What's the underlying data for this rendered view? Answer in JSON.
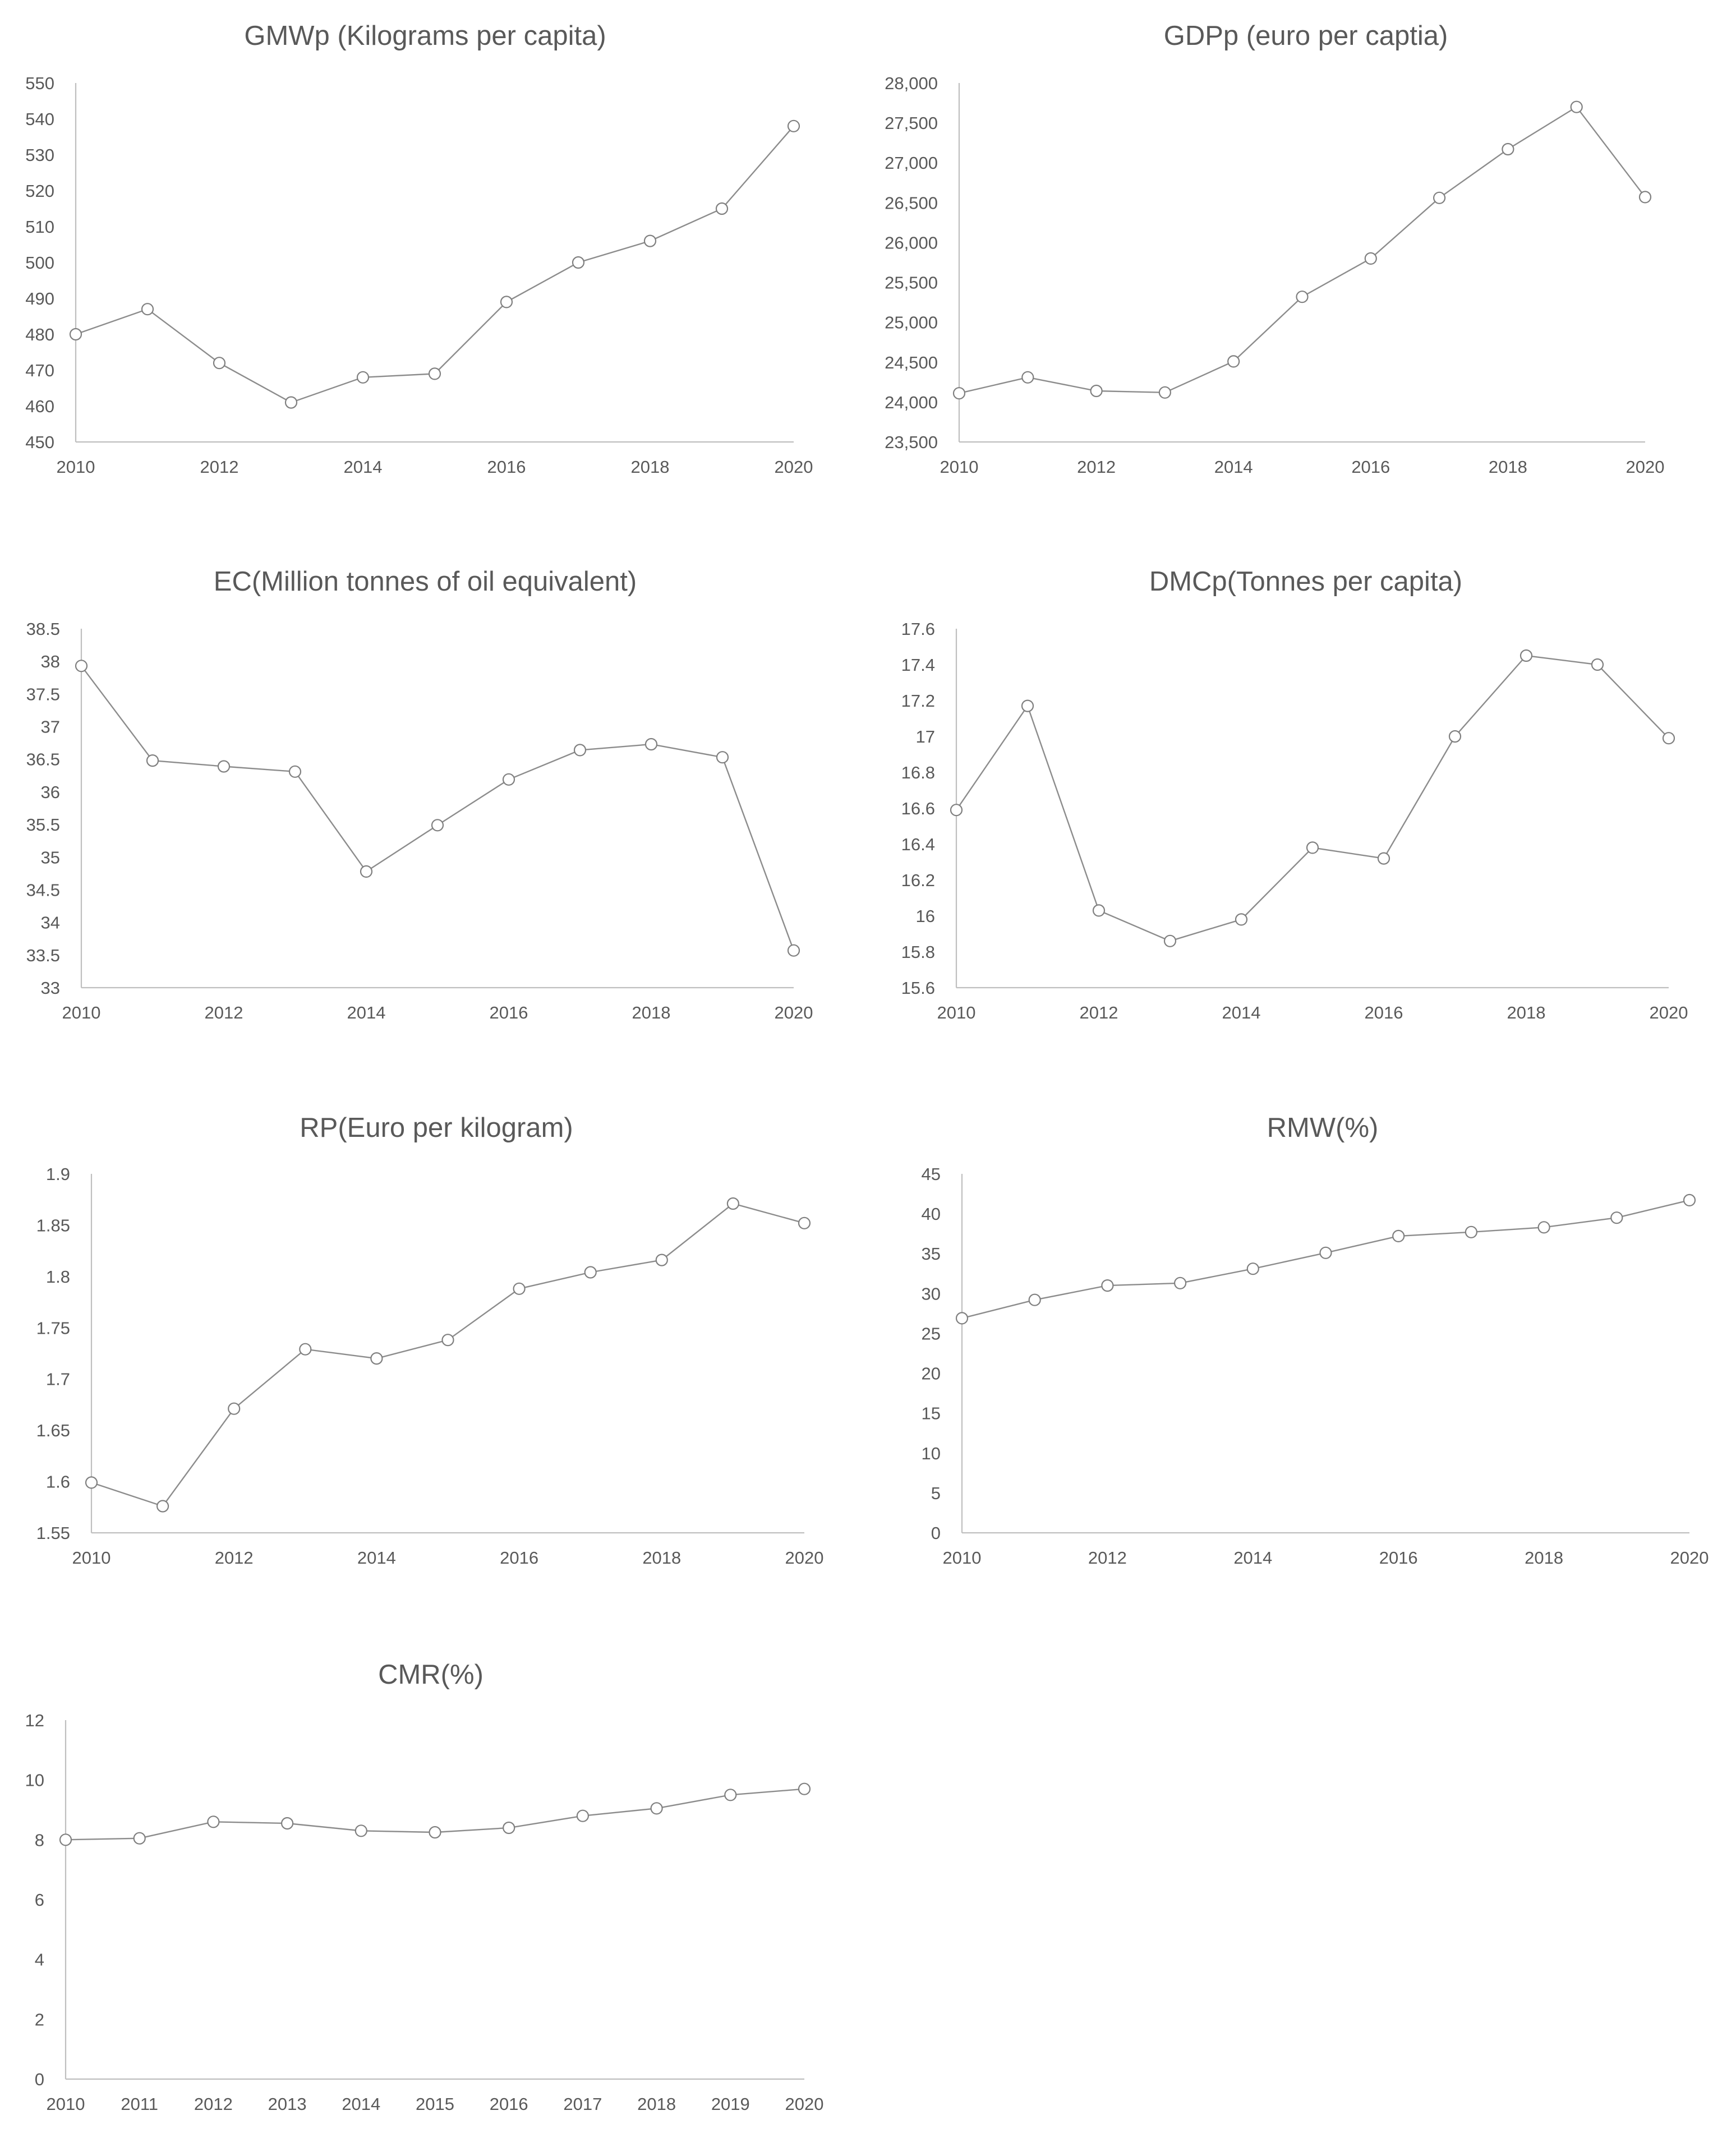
{
  "figure": {
    "background": "#ffffff",
    "line_color": "#8c8c8c",
    "text_color": "#595959"
  },
  "chart_data": [
    {
      "type": "line",
      "title": "GMWp (Kilograms per capita)",
      "x": [
        2010,
        2011,
        2012,
        2013,
        2014,
        2015,
        2016,
        2017,
        2018,
        2019,
        2020
      ],
      "values": [
        480,
        487,
        472,
        461,
        468,
        469,
        489,
        500,
        506,
        515,
        538
      ],
      "ylim": [
        450,
        550
      ],
      "y_ticks": [
        "450",
        "460",
        "470",
        "480",
        "490",
        "500",
        "510",
        "520",
        "530",
        "540",
        "550"
      ],
      "x_ticks": [
        "2010",
        "2012",
        "2014",
        "2016",
        "2018",
        "2020"
      ],
      "xlabel": "",
      "ylabel": "",
      "grid": false,
      "marker": "open-circle"
    },
    {
      "type": "line",
      "title": "GDPp (euro per captia)",
      "x": [
        2010,
        2011,
        2012,
        2013,
        2014,
        2015,
        2016,
        2017,
        2018,
        2019,
        2020
      ],
      "values": [
        24110,
        24310,
        24140,
        24120,
        24510,
        25320,
        25800,
        26560,
        27170,
        27700,
        26570
      ],
      "ylim": [
        23500,
        28000
      ],
      "y_ticks": [
        "23,500",
        "24,000",
        "24,500",
        "25,000",
        "25,500",
        "26,000",
        "26,500",
        "27,000",
        "27,500",
        "28,000"
      ],
      "x_ticks": [
        "2010",
        "2012",
        "2014",
        "2016",
        "2018",
        "2020"
      ],
      "xlabel": "",
      "ylabel": "",
      "grid": false,
      "marker": "open-circle"
    },
    {
      "type": "line",
      "title": "EC(Million tonnes of oil equivalent)",
      "x": [
        2010,
        2011,
        2012,
        2013,
        2014,
        2015,
        2016,
        2017,
        2018,
        2019,
        2020
      ],
      "values": [
        37.93,
        36.48,
        36.39,
        36.31,
        34.78,
        35.49,
        36.19,
        36.64,
        36.73,
        36.53,
        33.57
      ],
      "ylim": [
        33,
        38.5
      ],
      "y_ticks": [
        "33",
        "33.5",
        "34",
        "34.5",
        "35",
        "35.5",
        "36",
        "36.5",
        "37",
        "37.5",
        "38",
        "38.5"
      ],
      "x_ticks": [
        "2010",
        "2012",
        "2014",
        "2016",
        "2018",
        "2020"
      ],
      "xlabel": "",
      "ylabel": "",
      "grid": false,
      "marker": "open-circle"
    },
    {
      "type": "line",
      "title": "DMCp(Tonnes per capita)",
      "x": [
        2010,
        2011,
        2012,
        2013,
        2014,
        2015,
        2016,
        2017,
        2018,
        2019,
        2020
      ],
      "values": [
        16.59,
        17.17,
        16.03,
        15.86,
        15.98,
        16.38,
        16.32,
        17.0,
        17.45,
        17.4,
        16.99
      ],
      "ylim": [
        15.6,
        17.6
      ],
      "y_ticks": [
        "15.6",
        "15.8",
        "16",
        "16.2",
        "16.4",
        "16.6",
        "16.8",
        "17",
        "17.2",
        "17.4",
        "17.6"
      ],
      "x_ticks": [
        "2010",
        "2012",
        "2014",
        "2016",
        "2018",
        "2020"
      ],
      "xlabel": "",
      "ylabel": "",
      "grid": false,
      "marker": "open-circle"
    },
    {
      "type": "line",
      "title": "RP(Euro per kilogram)",
      "x": [
        2010,
        2011,
        2012,
        2013,
        2014,
        2015,
        2016,
        2017,
        2018,
        2019,
        2020
      ],
      "values": [
        1.599,
        1.576,
        1.671,
        1.729,
        1.72,
        1.738,
        1.788,
        1.804,
        1.816,
        1.871,
        1.852
      ],
      "ylim": [
        1.55,
        1.9
      ],
      "y_ticks": [
        "1.55",
        "1.6",
        "1.65",
        "1.7",
        "1.75",
        "1.8",
        "1.85",
        "1.9"
      ],
      "x_ticks": [
        "2010",
        "2012",
        "2014",
        "2016",
        "2018",
        "2020"
      ],
      "xlabel": "",
      "ylabel": "",
      "grid": false,
      "marker": "open-circle"
    },
    {
      "type": "line",
      "title": "RMW(%)",
      "x": [
        2010,
        2011,
        2012,
        2013,
        2014,
        2015,
        2016,
        2017,
        2018,
        2019,
        2020
      ],
      "values": [
        26.9,
        29.2,
        31.0,
        31.3,
        33.1,
        35.1,
        37.2,
        37.7,
        38.3,
        39.5,
        41.7
      ],
      "ylim": [
        0,
        45
      ],
      "y_ticks": [
        "0",
        "5",
        "10",
        "15",
        "20",
        "25",
        "30",
        "35",
        "40",
        "45"
      ],
      "x_ticks": [
        "2010",
        "2012",
        "2014",
        "2016",
        "2018",
        "2020"
      ],
      "xlabel": "",
      "ylabel": "",
      "grid": false,
      "marker": "open-circle"
    },
    {
      "type": "line",
      "title": "CMR(%)",
      "x": [
        2010,
        2011,
        2012,
        2013,
        2014,
        2015,
        2016,
        2017,
        2018,
        2019,
        2020
      ],
      "values": [
        8.0,
        8.05,
        8.6,
        8.55,
        8.3,
        8.25,
        8.4,
        8.8,
        9.05,
        9.5,
        9.7
      ],
      "ylim": [
        0,
        12
      ],
      "y_ticks": [
        "0",
        "2",
        "4",
        "6",
        "8",
        "10",
        "12"
      ],
      "x_ticks": [
        "2010",
        "2011",
        "2012",
        "2013",
        "2014",
        "2015",
        "2016",
        "2017",
        "2018",
        "2019",
        "2020"
      ],
      "xlabel": "",
      "ylabel": "",
      "grid": false,
      "marker": "open-circle"
    }
  ]
}
